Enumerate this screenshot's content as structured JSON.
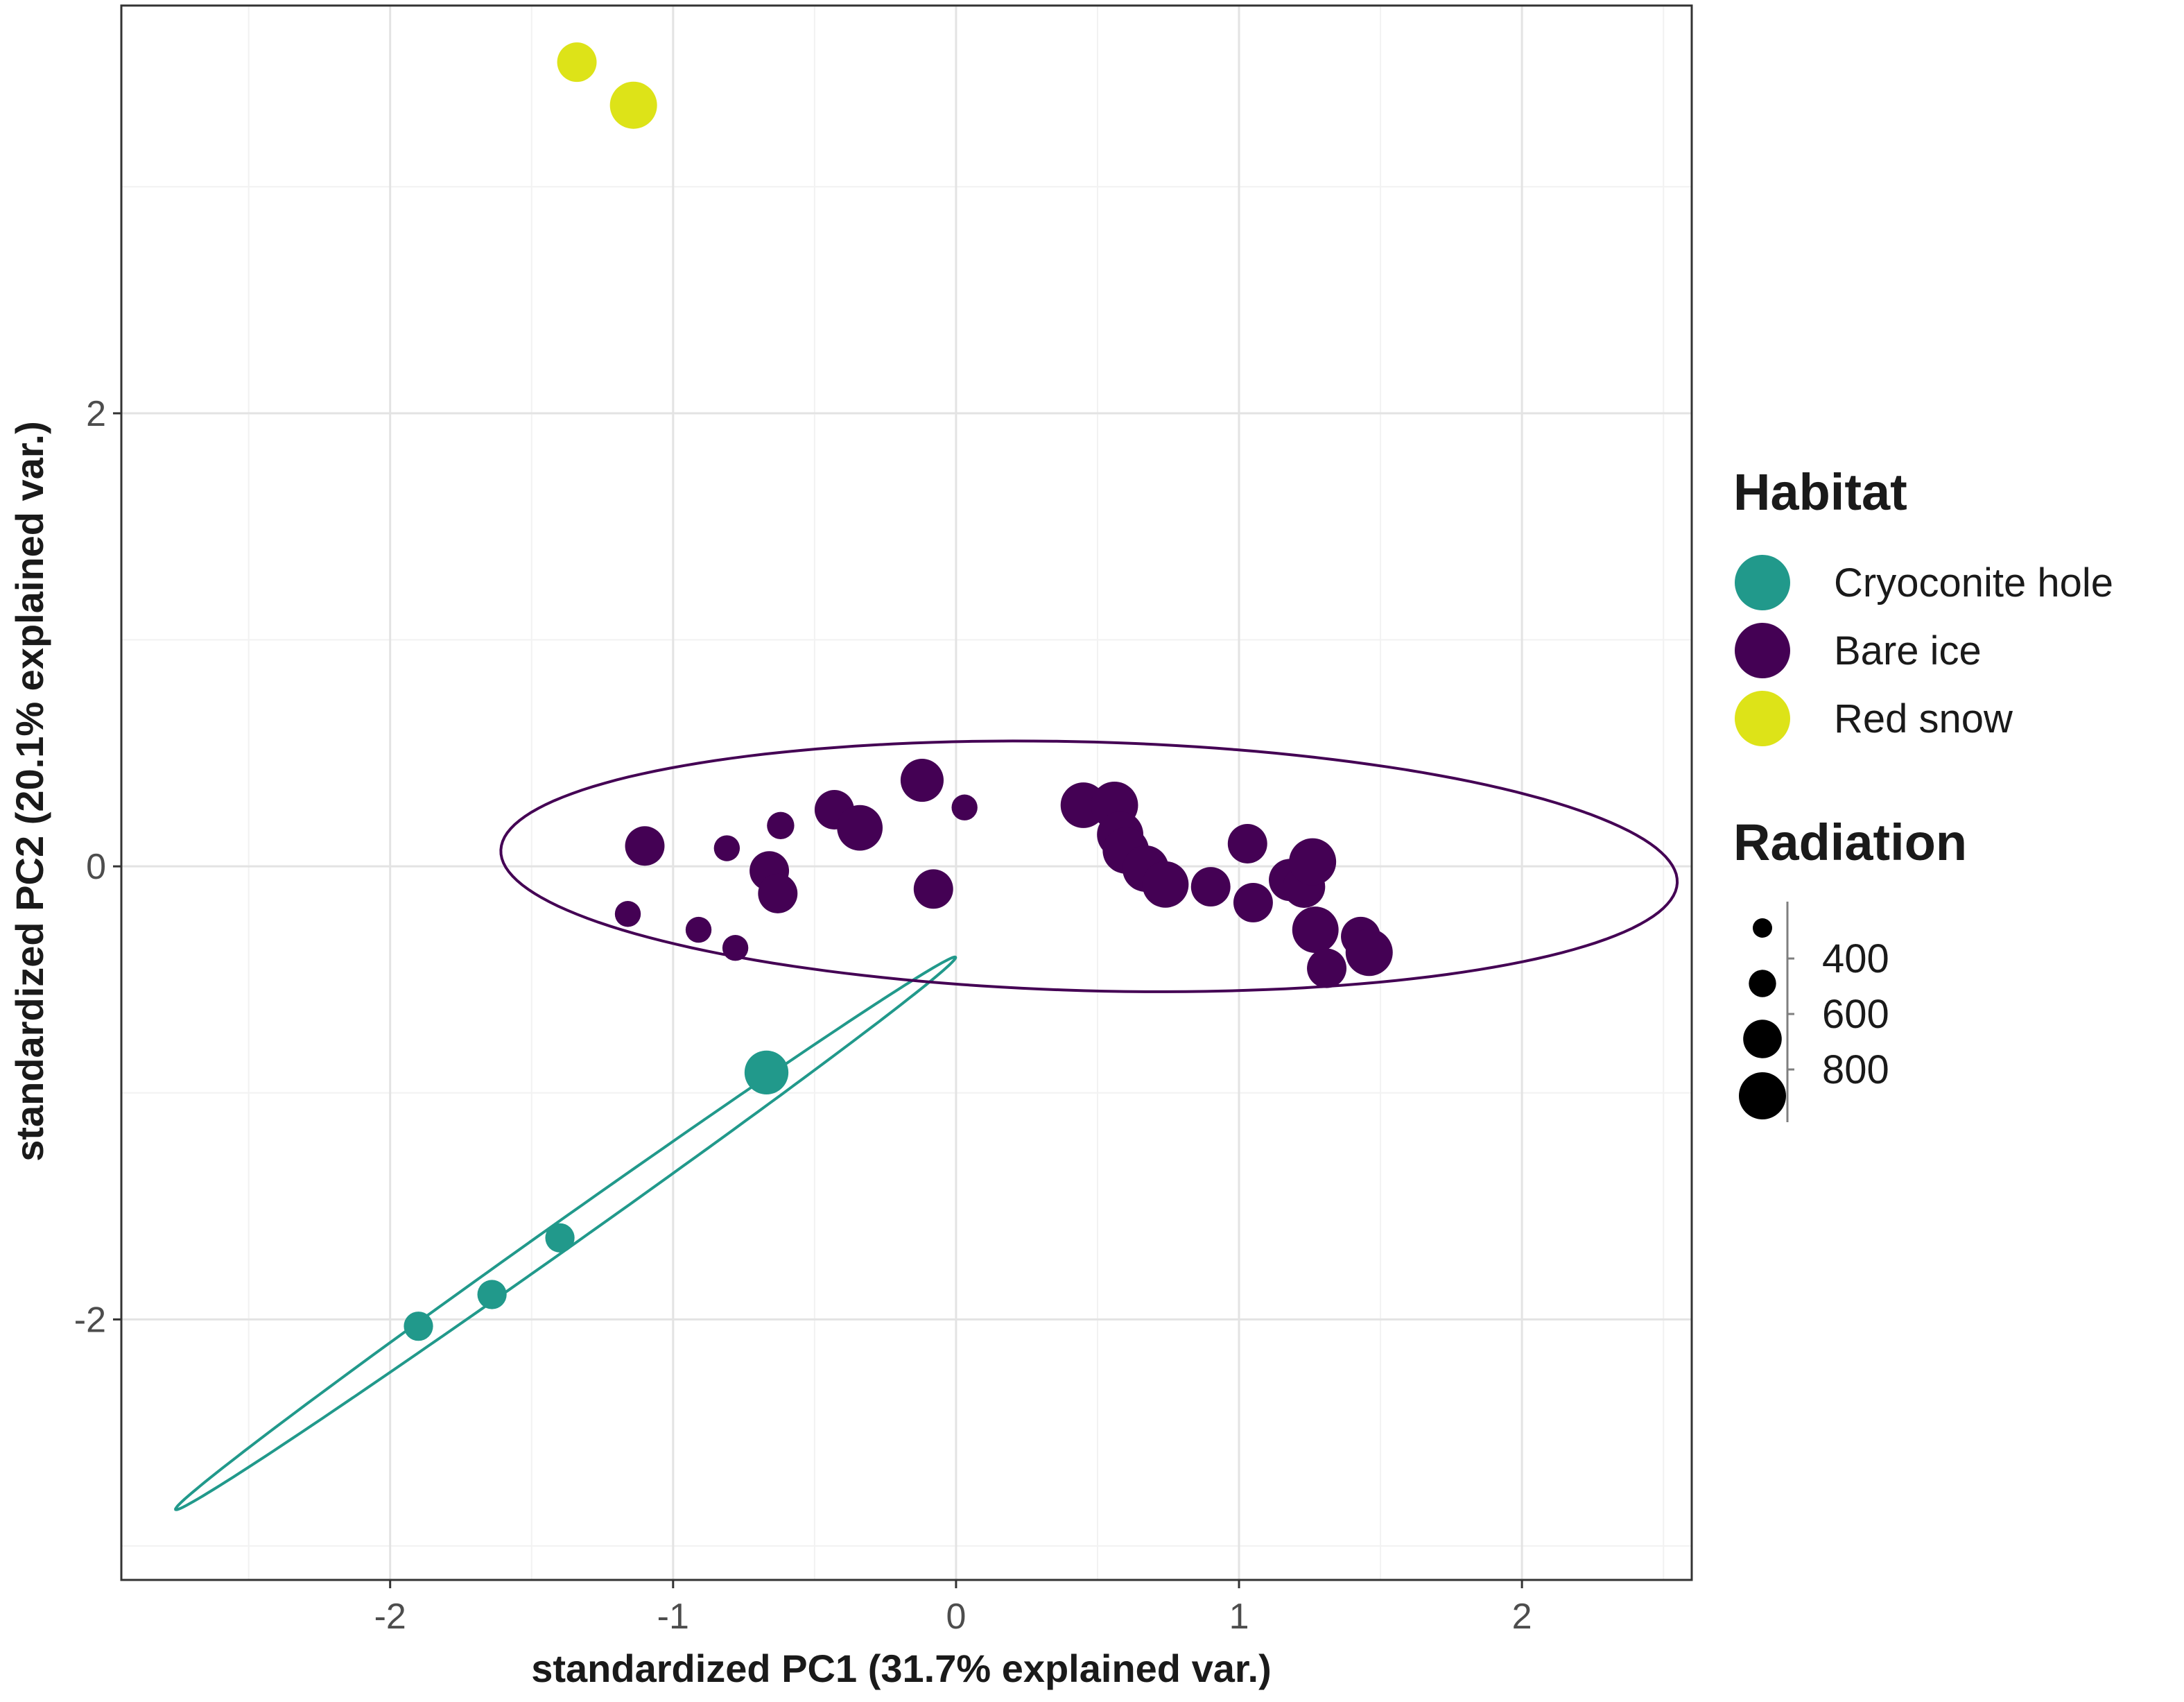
{
  "chart_data": {
    "type": "scatter",
    "title": "",
    "xlabel": "standardized PC1 (31.7% explained var.)",
    "ylabel": "standardized PC2 (20.1% explained var.)",
    "xlim": [
      -2.95,
      2.6
    ],
    "ylim": [
      -3.15,
      3.8
    ],
    "x_ticks": [
      -2,
      -1,
      0,
      1,
      2
    ],
    "y_ticks": [
      -2,
      0,
      2
    ],
    "grid": true,
    "legend": {
      "habitat_title": "Habitat",
      "radiation_title": "Radiation",
      "size_breaks": [
        400,
        600,
        800
      ],
      "size_min_value": 300
    },
    "series": [
      {
        "name": "Cryoconite hole",
        "color": "#21998b",
        "points": [
          {
            "x": -0.67,
            "y": -0.91,
            "radiation": 720
          },
          {
            "x": -1.4,
            "y": -1.64,
            "radiation": 430
          },
          {
            "x": -1.64,
            "y": -1.89,
            "radiation": 430
          },
          {
            "x": -1.9,
            "y": -2.03,
            "radiation": 430
          }
        ],
        "ellipse": {
          "cx": -1.38,
          "cy": -1.62,
          "semi_major": 1.84,
          "semi_minor": 0.055,
          "angle_deg": 41.5
        }
      },
      {
        "name": "Bare ice",
        "color": "#440154",
        "points": [
          {
            "x": -0.12,
            "y": 0.38,
            "radiation": 700
          },
          {
            "x": 0.03,
            "y": 0.26,
            "radiation": 380
          },
          {
            "x": -0.43,
            "y": 0.25,
            "radiation": 620
          },
          {
            "x": -0.34,
            "y": 0.17,
            "radiation": 760
          },
          {
            "x": -0.62,
            "y": 0.18,
            "radiation": 400
          },
          {
            "x": -1.1,
            "y": 0.09,
            "radiation": 620
          },
          {
            "x": -0.81,
            "y": 0.08,
            "radiation": 380
          },
          {
            "x": -0.66,
            "y": -0.02,
            "radiation": 620
          },
          {
            "x": -0.63,
            "y": -0.12,
            "radiation": 620
          },
          {
            "x": -0.08,
            "y": -0.1,
            "radiation": 620
          },
          {
            "x": -1.16,
            "y": -0.21,
            "radiation": 380
          },
          {
            "x": -0.91,
            "y": -0.28,
            "radiation": 380
          },
          {
            "x": -0.78,
            "y": -0.36,
            "radiation": 380
          },
          {
            "x": 0.45,
            "y": 0.27,
            "radiation": 760
          },
          {
            "x": 0.56,
            "y": 0.27,
            "radiation": 800
          },
          {
            "x": 0.58,
            "y": 0.14,
            "radiation": 780
          },
          {
            "x": 0.6,
            "y": 0.07,
            "radiation": 780
          },
          {
            "x": 0.67,
            "y": -0.01,
            "radiation": 780
          },
          {
            "x": 0.74,
            "y": -0.08,
            "radiation": 780
          },
          {
            "x": 0.9,
            "y": -0.09,
            "radiation": 620
          },
          {
            "x": 1.03,
            "y": 0.1,
            "radiation": 620
          },
          {
            "x": 1.05,
            "y": -0.16,
            "radiation": 620
          },
          {
            "x": 1.18,
            "y": -0.06,
            "radiation": 680
          },
          {
            "x": 1.23,
            "y": -0.09,
            "radiation": 680
          },
          {
            "x": 1.26,
            "y": 0.02,
            "radiation": 800
          },
          {
            "x": 1.27,
            "y": -0.28,
            "radiation": 780
          },
          {
            "x": 1.43,
            "y": -0.31,
            "radiation": 620
          },
          {
            "x": 1.46,
            "y": -0.38,
            "radiation": 800
          },
          {
            "x": 1.31,
            "y": -0.45,
            "radiation": 620
          }
        ],
        "ellipse": {
          "cx": 0.47,
          "cy": 0.0,
          "semi_major": 2.08,
          "semi_minor": 0.549,
          "angle_deg": -2.0
        }
      },
      {
        "name": "Red snow",
        "color": "#dde318",
        "points": [
          {
            "x": -1.34,
            "y": 3.55,
            "radiation": 620
          },
          {
            "x": -1.14,
            "y": 3.36,
            "radiation": 800
          }
        ]
      }
    ]
  }
}
